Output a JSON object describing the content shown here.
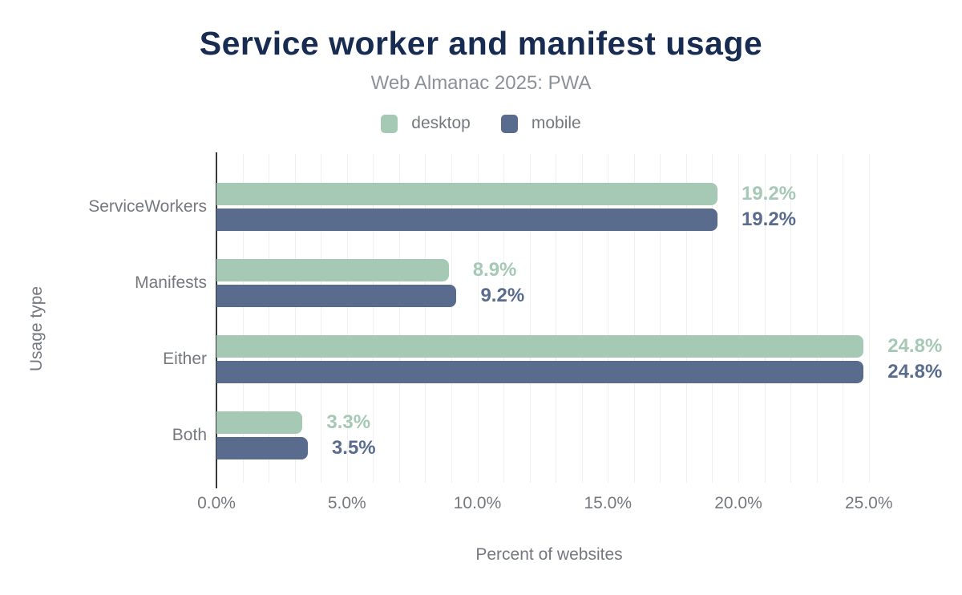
{
  "header": {
    "title": "Service worker and manifest usage",
    "subtitle": "Web Almanac 2025: PWA"
  },
  "chart_data": {
    "type": "bar",
    "orientation": "horizontal",
    "title": "Service worker and manifest usage",
    "subtitle": "Web Almanac 2025: PWA",
    "categories": [
      "ServiceWorkers",
      "Manifests",
      "Either",
      "Both"
    ],
    "series": [
      {
        "name": "desktop",
        "color": "#a5c9b5",
        "values": [
          19.2,
          8.9,
          24.8,
          3.3
        ],
        "labels": [
          "19.2%",
          "8.9%",
          "24.8%",
          "3.3%"
        ]
      },
      {
        "name": "mobile",
        "color": "#5a6c8e",
        "values": [
          19.2,
          9.2,
          24.8,
          3.5
        ],
        "labels": [
          "19.2%",
          "9.2%",
          "24.8%",
          "3.5%"
        ]
      }
    ],
    "xlabel": "Percent of websites",
    "ylabel": "Usage type",
    "x_ticks": [
      {
        "value": 0,
        "label": "0.0%"
      },
      {
        "value": 5,
        "label": "5.0%"
      },
      {
        "value": 10,
        "label": "10.0%"
      },
      {
        "value": 15,
        "label": "15.0%"
      },
      {
        "value": 20,
        "label": "20.0%"
      },
      {
        "value": 25,
        "label": "25.0%"
      }
    ],
    "xlim": [
      0,
      25.5
    ],
    "minor_grid_step": 1,
    "grid": true,
    "legend_position": "top",
    "colors": {
      "title": "#182c52",
      "subtitle": "#8c9197",
      "axis_text": "#75797e",
      "axis_line": "#35373b",
      "gridline": "#f0f0f0",
      "background": "#ffffff"
    }
  }
}
